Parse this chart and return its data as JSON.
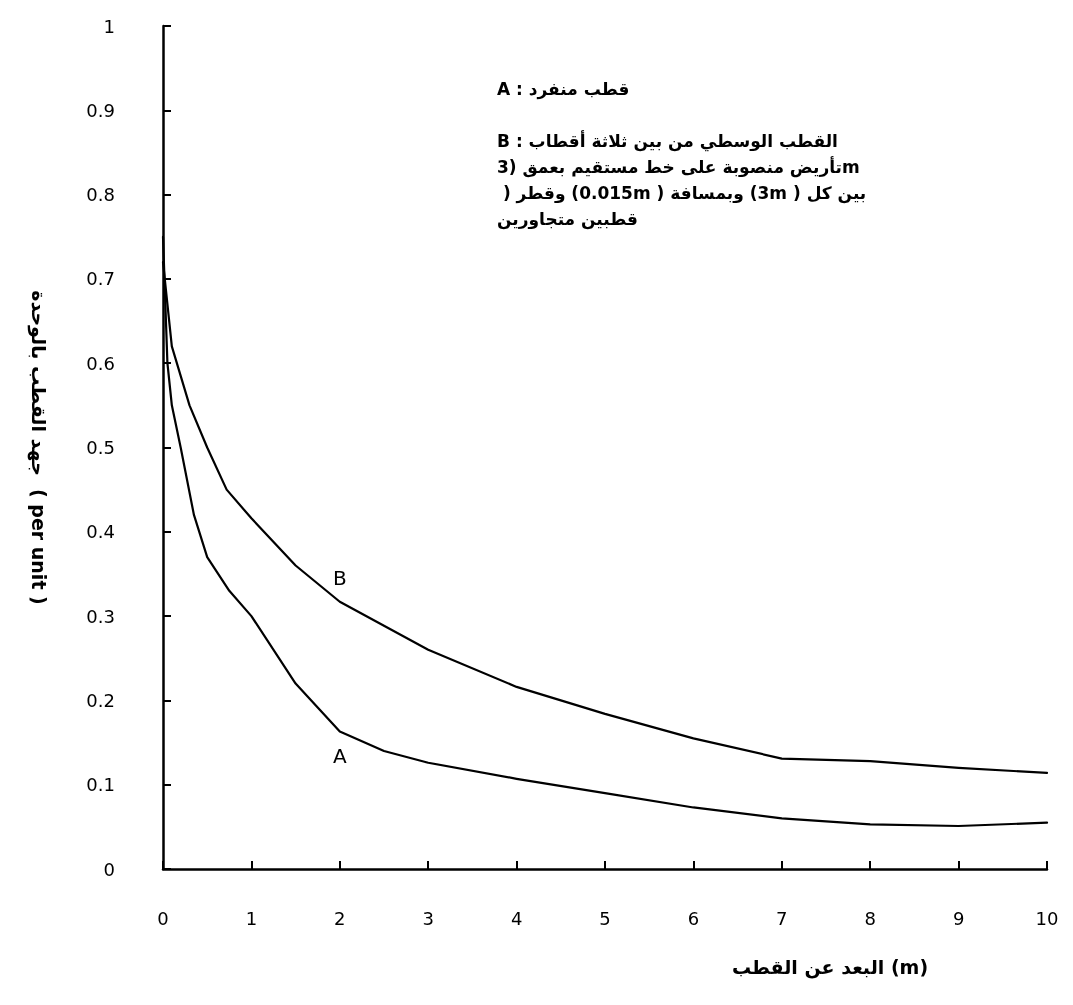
{
  "chart_data": {
    "type": "line",
    "xlabel": "البعد عن القطب (m)",
    "ylabel": "جهد القطب بالوحدة  ( per unit )",
    "xlim": [
      0,
      10
    ],
    "ylim": [
      0,
      1
    ],
    "xticks": [
      0,
      1,
      2,
      3,
      4,
      5,
      6,
      7,
      8,
      9,
      10
    ],
    "yticks": [
      0,
      0.1,
      0.2,
      0.3,
      0.4,
      0.5,
      0.6,
      0.7,
      0.8,
      0.9,
      1
    ],
    "grid": false,
    "legend": false,
    "marker": "none",
    "line_style": "solid",
    "series": [
      {
        "name": "A",
        "color": "#000000",
        "x": [
          0,
          0.05,
          0.1,
          0.2,
          0.35,
          0.5,
          0.75,
          1,
          1.5,
          2,
          2.5,
          3,
          4,
          5,
          6,
          7,
          8,
          9,
          10
        ],
        "values": [
          0.75,
          0.6,
          0.55,
          0.5,
          0.42,
          0.37,
          0.33,
          0.3,
          0.22,
          0.163,
          0.14,
          0.126,
          0.107,
          0.09,
          0.073,
          0.06,
          0.053,
          0.051,
          0.055
        ]
      },
      {
        "name": "B",
        "color": "#000000",
        "x": [
          0,
          0.1,
          0.3,
          0.5,
          0.72,
          1,
          1.5,
          2,
          3,
          4,
          5,
          6,
          7,
          8,
          9,
          10
        ],
        "values": [
          0.72,
          0.62,
          0.55,
          0.5,
          0.45,
          0.416,
          0.36,
          0.317,
          0.26,
          0.216,
          0.184,
          0.155,
          0.131,
          0.128,
          0.12,
          0.114
        ]
      }
    ],
    "annotations": [
      "A : قطب منفرد",
      "B : القطب الوسطي من بين ثلاثة أقطاب تأريض منصوبة على خط مستقيم بعمق (3m ) وقطر (0.015m ) وبمسافة (3m ) بين كل قطبين متجاورين"
    ]
  }
}
